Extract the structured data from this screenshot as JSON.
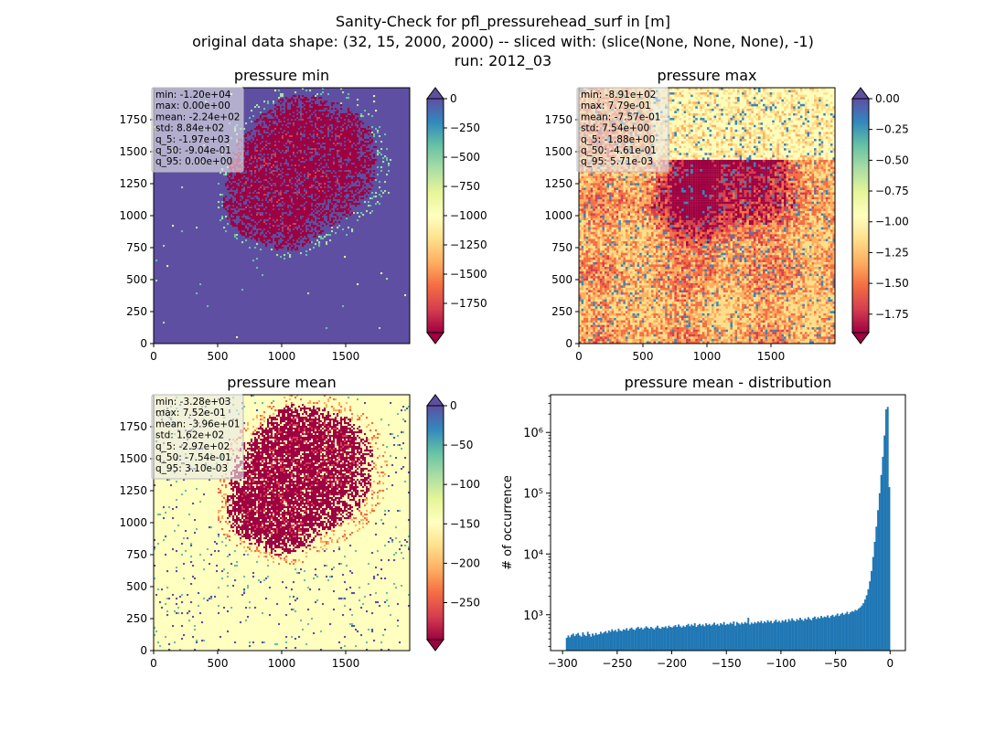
{
  "suptitle": [
    "Sanity-Check for pfl_pressurehead_surf in [m]",
    "original data shape: (32, 15, 2000, 2000) -- sliced with: (slice(None, None, None), -1)",
    "run: 2012_03"
  ],
  "colors": {
    "spectral": [
      "#9e0142",
      "#d53e4f",
      "#f46d43",
      "#fdae61",
      "#fee08b",
      "#ffffbf",
      "#e6f598",
      "#abdda4",
      "#66c2a5",
      "#3288bd",
      "#5e4fa2"
    ],
    "hist_bar": "#1f77b4"
  },
  "chart_data": [
    {
      "type": "heatmap",
      "title": "pressure min",
      "colormap": "Spectral",
      "xlim": [
        0,
        2000
      ],
      "ylim": [
        0,
        2000
      ],
      "xticks": [
        "0",
        "500",
        "1000",
        "1500"
      ],
      "yticks": [
        "0",
        "250",
        "500",
        "750",
        "1000",
        "1250",
        "1500",
        "1750"
      ],
      "clim": [
        -2000,
        0
      ],
      "colorbar_ticks": [
        "0",
        "−250",
        "−500",
        "−750",
        "−1000",
        "−1250",
        "−1500",
        "−1750"
      ],
      "colorbar_extend": "both",
      "background_value": 0,
      "stats": [
        "min: -1.20e+04",
        "max: 0.00e+00",
        "mean: -2.24e+02",
        "std: 8.84e+02",
        "q_5: -1.97e+03",
        "q_50: -9.04e-01",
        "q_95: 0.00e+00"
      ]
    },
    {
      "type": "heatmap",
      "title": "pressure max",
      "colormap": "Spectral",
      "xlim": [
        0,
        2000
      ],
      "ylim": [
        0,
        2000
      ],
      "xticks": [
        "0",
        "500",
        "1000",
        "1500"
      ],
      "yticks": [
        "0",
        "250",
        "500",
        "750",
        "1000",
        "1250",
        "1500",
        "1750"
      ],
      "clim": [
        -1.9,
        0
      ],
      "colorbar_ticks": [
        "0.00",
        "−0.25",
        "−0.50",
        "−0.75",
        "−1.00",
        "−1.25",
        "−1.50",
        "−1.75"
      ],
      "colorbar_extend": "both",
      "stats": [
        "min: -8.91e+02",
        "max: 7.79e-01",
        "mean: -7.57e-01",
        "std: 7.54e+00",
        "q_5: -1.88e+00",
        "q_50: -4.61e-01",
        "q_95: 5.71e-03"
      ]
    },
    {
      "type": "heatmap",
      "title": "pressure mean",
      "colormap": "Spectral",
      "xlim": [
        0,
        2000
      ],
      "ylim": [
        0,
        2000
      ],
      "xticks": [
        "0",
        "500",
        "1000",
        "1500"
      ],
      "yticks": [
        "0",
        "250",
        "500",
        "750",
        "1000",
        "1250",
        "1500",
        "1750"
      ],
      "clim": [
        -297,
        0
      ],
      "colorbar_ticks": [
        "0",
        "−50",
        "−100",
        "−150",
        "−200",
        "−250"
      ],
      "colorbar_extend": "both",
      "stats": [
        "min: -3.28e+03",
        "max: 7.52e-01",
        "mean: -3.96e+01",
        "std: 1.62e+02",
        "q_5: -2.97e+02",
        "q_50: -7.54e-01",
        "q_95: 3.10e-03"
      ]
    },
    {
      "type": "bar",
      "title": "pressure mean - distribution",
      "ylabel": "# of occurrence",
      "yscale": "log",
      "xlim": [
        -311,
        14
      ],
      "ylim_log10": [
        2.41,
        6.62
      ],
      "xticks": [
        "−300",
        "−250",
        "−200",
        "−150",
        "−100",
        "−50",
        "0"
      ],
      "yticks": [
        "10³",
        "10⁴",
        "10⁵",
        "10⁶"
      ],
      "bins": {
        "start": -297,
        "end": 0,
        "count": 200
      },
      "counts_log10": [
        2.62,
        2.66,
        2.63,
        2.67,
        2.69,
        2.65,
        2.68,
        2.7,
        2.66,
        2.64,
        2.71,
        2.67,
        2.65,
        2.72,
        2.68,
        2.64,
        2.69,
        2.66,
        2.7,
        2.67,
        2.68,
        2.72,
        2.69,
        2.71,
        2.73,
        2.7,
        2.74,
        2.72,
        2.76,
        2.73,
        2.75,
        2.72,
        2.77,
        2.74,
        2.73,
        2.76,
        2.75,
        2.78,
        2.74,
        2.77,
        2.79,
        2.76,
        2.75,
        2.78,
        2.8,
        2.77,
        2.79,
        2.76,
        2.78,
        2.81,
        2.79,
        2.77,
        2.8,
        2.78,
        2.76,
        2.79,
        2.82,
        2.78,
        2.77,
        2.8,
        2.79,
        2.81,
        2.78,
        2.82,
        2.8,
        2.79,
        2.81,
        2.83,
        2.8,
        2.84,
        2.81,
        2.79,
        2.82,
        2.8,
        2.83,
        2.85,
        2.81,
        2.84,
        2.82,
        2.86,
        2.8,
        2.83,
        2.85,
        2.82,
        2.84,
        2.81,
        2.86,
        2.83,
        2.85,
        2.82,
        2.84,
        2.87,
        2.83,
        2.85,
        2.82,
        2.86,
        2.84,
        2.88,
        2.83,
        2.85,
        2.84,
        2.87,
        2.85,
        2.89,
        2.82,
        2.88,
        2.86,
        2.84,
        2.87,
        2.85,
        2.88,
        2.86,
        2.95,
        2.84,
        2.87,
        2.85,
        2.88,
        2.86,
        2.89,
        2.87,
        2.9,
        2.86,
        2.89,
        2.87,
        2.91,
        2.88,
        2.9,
        2.86,
        2.89,
        2.92,
        2.88,
        2.9,
        2.87,
        2.91,
        2.89,
        2.92,
        2.88,
        2.93,
        2.9,
        2.94,
        2.91,
        2.89,
        2.93,
        2.91,
        2.95,
        2.92,
        2.9,
        2.94,
        2.92,
        2.96,
        2.93,
        2.91,
        2.95,
        2.97,
        2.93,
        2.96,
        2.94,
        2.98,
        2.95,
        2.97,
        2.96,
        2.99,
        2.95,
        2.98,
        3.0,
        2.97,
        2.99,
        3.02,
        2.98,
        3.01,
        3.03,
        3.0,
        3.02,
        3.05,
        3.01,
        3.04,
        3.06,
        3.05,
        3.08,
        3.07,
        3.1,
        3.12,
        3.15,
        3.19,
        3.25,
        3.32,
        3.42,
        3.55,
        3.72,
        3.95,
        4.2,
        4.45,
        4.72,
        5.0,
        5.3,
        5.6,
        5.95,
        6.38,
        6.42,
        5.1
      ]
    }
  ]
}
